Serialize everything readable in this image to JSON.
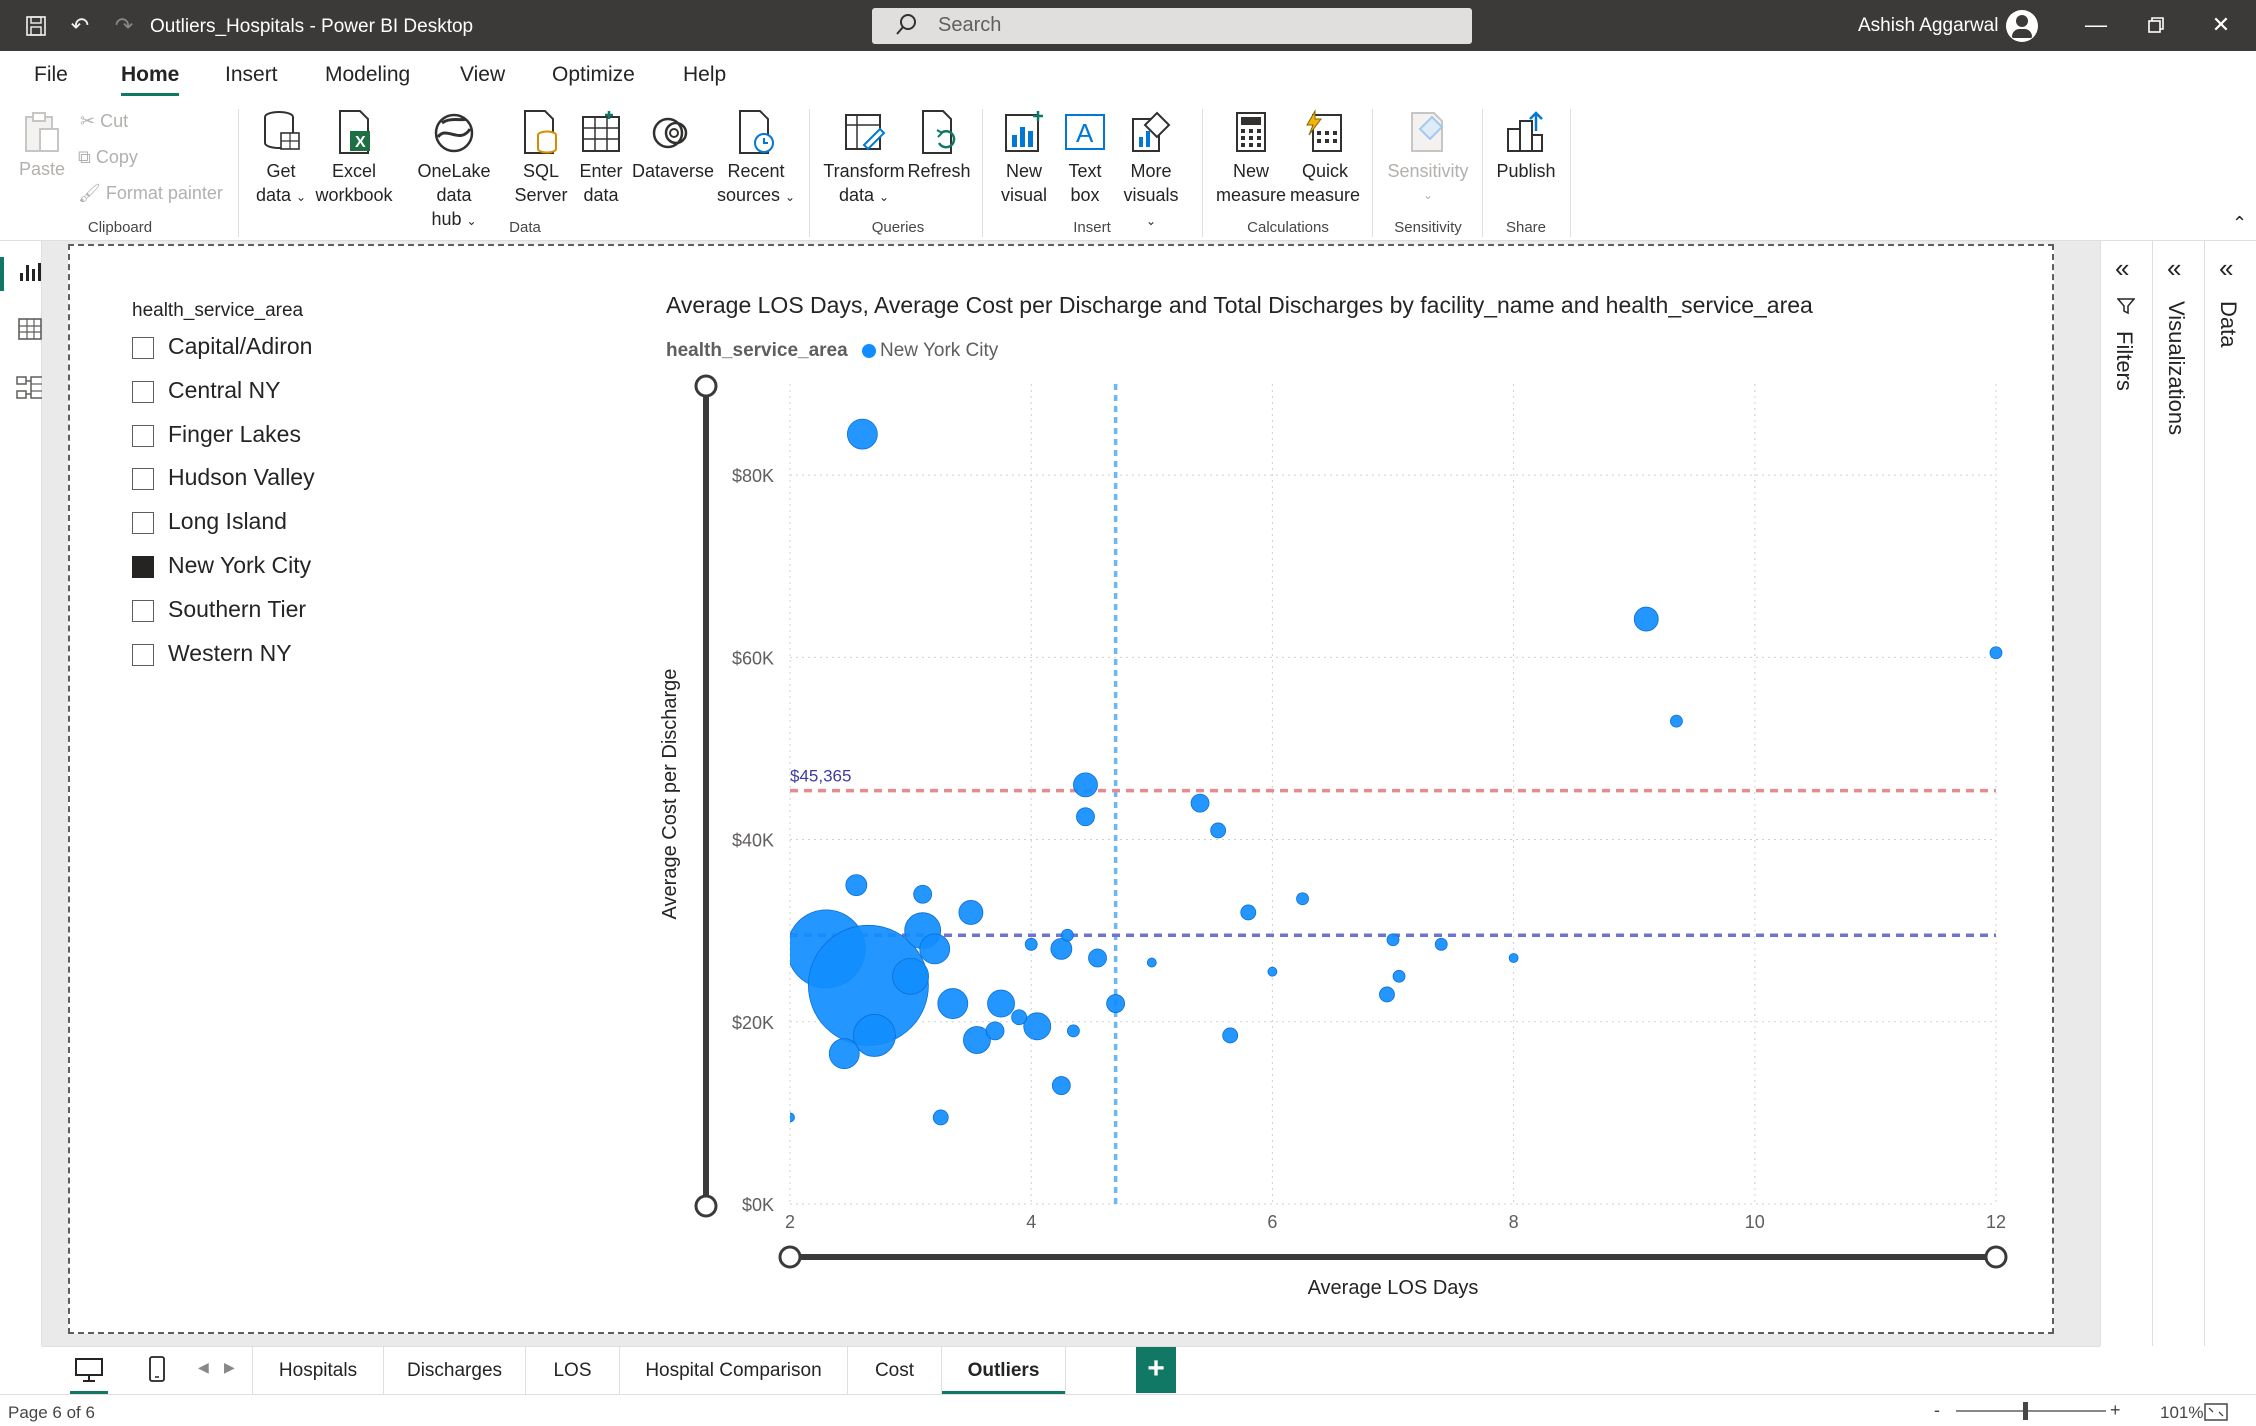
{
  "window": {
    "title": "Outliers_Hospitals - Power BI Desktop",
    "search_placeholder": "Search",
    "user_name": "Ashish Aggarwal"
  },
  "menu": [
    "File",
    "Home",
    "Insert",
    "Modeling",
    "View",
    "Optimize",
    "Help"
  ],
  "ribbon": {
    "clipboard": {
      "paste": "Paste",
      "cut": "Cut",
      "copy": "Copy",
      "format_painter": "Format painter",
      "label": "Clipboard"
    },
    "data": {
      "get_data_1": "Get",
      "get_data_2": "data",
      "excel_1": "Excel",
      "excel_2": "workbook",
      "onelake_1": "OneLake data",
      "onelake_2": "hub",
      "sql_1": "SQL",
      "sql_2": "Server",
      "enter_1": "Enter",
      "enter_2": "data",
      "dataverse": "Dataverse",
      "recent_1": "Recent",
      "recent_2": "sources",
      "label": "Data"
    },
    "queries": {
      "transform_1": "Transform",
      "transform_2": "data",
      "refresh": "Refresh",
      "label": "Queries"
    },
    "insert": {
      "new_visual_1": "New",
      "new_visual_2": "visual",
      "text_box_1": "Text",
      "text_box_2": "box",
      "more_visuals_1": "More",
      "more_visuals_2": "visuals",
      "label": "Insert"
    },
    "calculations": {
      "new_measure_1": "New",
      "new_measure_2": "measure",
      "quick_measure_1": "Quick",
      "quick_measure_2": "measure",
      "label": "Calculations"
    },
    "sensitivity": {
      "button": "Sensitivity",
      "label": "Sensitivity"
    },
    "share": {
      "publish": "Publish",
      "label": "Share"
    }
  },
  "slicer": {
    "title": "health_service_area",
    "items": [
      {
        "label": "Capital/Adiron",
        "checked": false
      },
      {
        "label": "Central NY",
        "checked": false
      },
      {
        "label": "Finger Lakes",
        "checked": false
      },
      {
        "label": "Hudson Valley",
        "checked": false
      },
      {
        "label": "Long Island",
        "checked": false
      },
      {
        "label": "New York City",
        "checked": true
      },
      {
        "label": "Southern Tier",
        "checked": false
      },
      {
        "label": "Western NY",
        "checked": false
      }
    ]
  },
  "chart_data": {
    "type": "scatter",
    "title": "Average LOS Days, Average Cost per Discharge and Total Discharges by facility_name and health_service_area",
    "legend_title": "health_service_area",
    "legend_placement": "top-left",
    "xlabel": "Average LOS Days",
    "ylabel": "Average Cost per Discharge",
    "xlim": [
      2,
      12
    ],
    "ylim": [
      0,
      90000
    ],
    "x_ticks": [
      2,
      4,
      6,
      8,
      10,
      12
    ],
    "y_ticks": [
      0,
      20000,
      40000,
      60000,
      80000
    ],
    "y_tick_labels": [
      "$0K",
      "$20K",
      "$40K",
      "$60K",
      "$80K"
    ],
    "grid": true,
    "series_color": "#118dff",
    "reference_lines": {
      "x_average": {
        "value": 4.7,
        "color": "#6cb8f6"
      },
      "y_max_line": {
        "value": 45365,
        "label": "$45,365",
        "color": "#e8888f"
      },
      "y_average": {
        "value": 29500,
        "color": "#6f74d0"
      }
    },
    "series": [
      {
        "name": "New York City",
        "points": [
          {
            "x": 2.6,
            "y": 84500,
            "size": 5
          },
          {
            "x": 9.1,
            "y": 64200,
            "size": 4
          },
          {
            "x": 9.35,
            "y": 53000,
            "size": 2
          },
          {
            "x": 12.0,
            "y": 60500,
            "size": 2
          },
          {
            "x": 4.45,
            "y": 46000,
            "size": 4
          },
          {
            "x": 4.45,
            "y": 42500,
            "size": 3
          },
          {
            "x": 5.4,
            "y": 44000,
            "size": 3
          },
          {
            "x": 5.55,
            "y": 41000,
            "size": 2.5
          },
          {
            "x": 2.55,
            "y": 35000,
            "size": 3.5
          },
          {
            "x": 3.1,
            "y": 34000,
            "size": 3
          },
          {
            "x": 3.5,
            "y": 32000,
            "size": 4
          },
          {
            "x": 5.8,
            "y": 32000,
            "size": 2.5
          },
          {
            "x": 6.25,
            "y": 33500,
            "size": 2
          },
          {
            "x": 2.3,
            "y": 28000,
            "size": 13
          },
          {
            "x": 2.65,
            "y": 24000,
            "size": 20
          },
          {
            "x": 3.1,
            "y": 30000,
            "size": 6
          },
          {
            "x": 3.2,
            "y": 28000,
            "size": 5
          },
          {
            "x": 3.0,
            "y": 25000,
            "size": 6
          },
          {
            "x": 2.7,
            "y": 18500,
            "size": 7
          },
          {
            "x": 2.45,
            "y": 16500,
            "size": 5
          },
          {
            "x": 3.35,
            "y": 22000,
            "size": 5
          },
          {
            "x": 3.75,
            "y": 22000,
            "size": 4.5
          },
          {
            "x": 3.55,
            "y": 18000,
            "size": 4.5
          },
          {
            "x": 3.7,
            "y": 19000,
            "size": 3
          },
          {
            "x": 4.05,
            "y": 19500,
            "size": 4.5
          },
          {
            "x": 3.9,
            "y": 20500,
            "size": 2.5
          },
          {
            "x": 4.25,
            "y": 28000,
            "size": 3.5
          },
          {
            "x": 4.0,
            "y": 28500,
            "size": 2
          },
          {
            "x": 4.3,
            "y": 29500,
            "size": 2
          },
          {
            "x": 4.55,
            "y": 27000,
            "size": 3
          },
          {
            "x": 4.7,
            "y": 22000,
            "size": 3
          },
          {
            "x": 4.35,
            "y": 19000,
            "size": 2
          },
          {
            "x": 4.25,
            "y": 13000,
            "size": 3
          },
          {
            "x": 3.25,
            "y": 9500,
            "size": 2.5
          },
          {
            "x": 2.0,
            "y": 9500,
            "size": 1.5
          },
          {
            "x": 5.0,
            "y": 26500,
            "size": 1.5
          },
          {
            "x": 5.65,
            "y": 18500,
            "size": 2.5
          },
          {
            "x": 6.0,
            "y": 25500,
            "size": 1.5
          },
          {
            "x": 6.95,
            "y": 23000,
            "size": 2.5
          },
          {
            "x": 7.0,
            "y": 29000,
            "size": 2
          },
          {
            "x": 7.05,
            "y": 25000,
            "size": 2
          },
          {
            "x": 7.4,
            "y": 28500,
            "size": 2
          },
          {
            "x": 8.0,
            "y": 27000,
            "size": 1.5
          }
        ]
      }
    ]
  },
  "right_panes": {
    "filters": "Filters",
    "visualizations": "Visualizations",
    "data": "Data"
  },
  "tabs": [
    "Hospitals",
    "Discharges",
    "LOS",
    "Hospital Comparison",
    "Cost",
    "Outliers"
  ],
  "active_tab": "Outliers",
  "status": {
    "page": "Page 6 of 6",
    "zoom": "101%",
    "zoom_minus": "-",
    "zoom_plus": "+"
  }
}
